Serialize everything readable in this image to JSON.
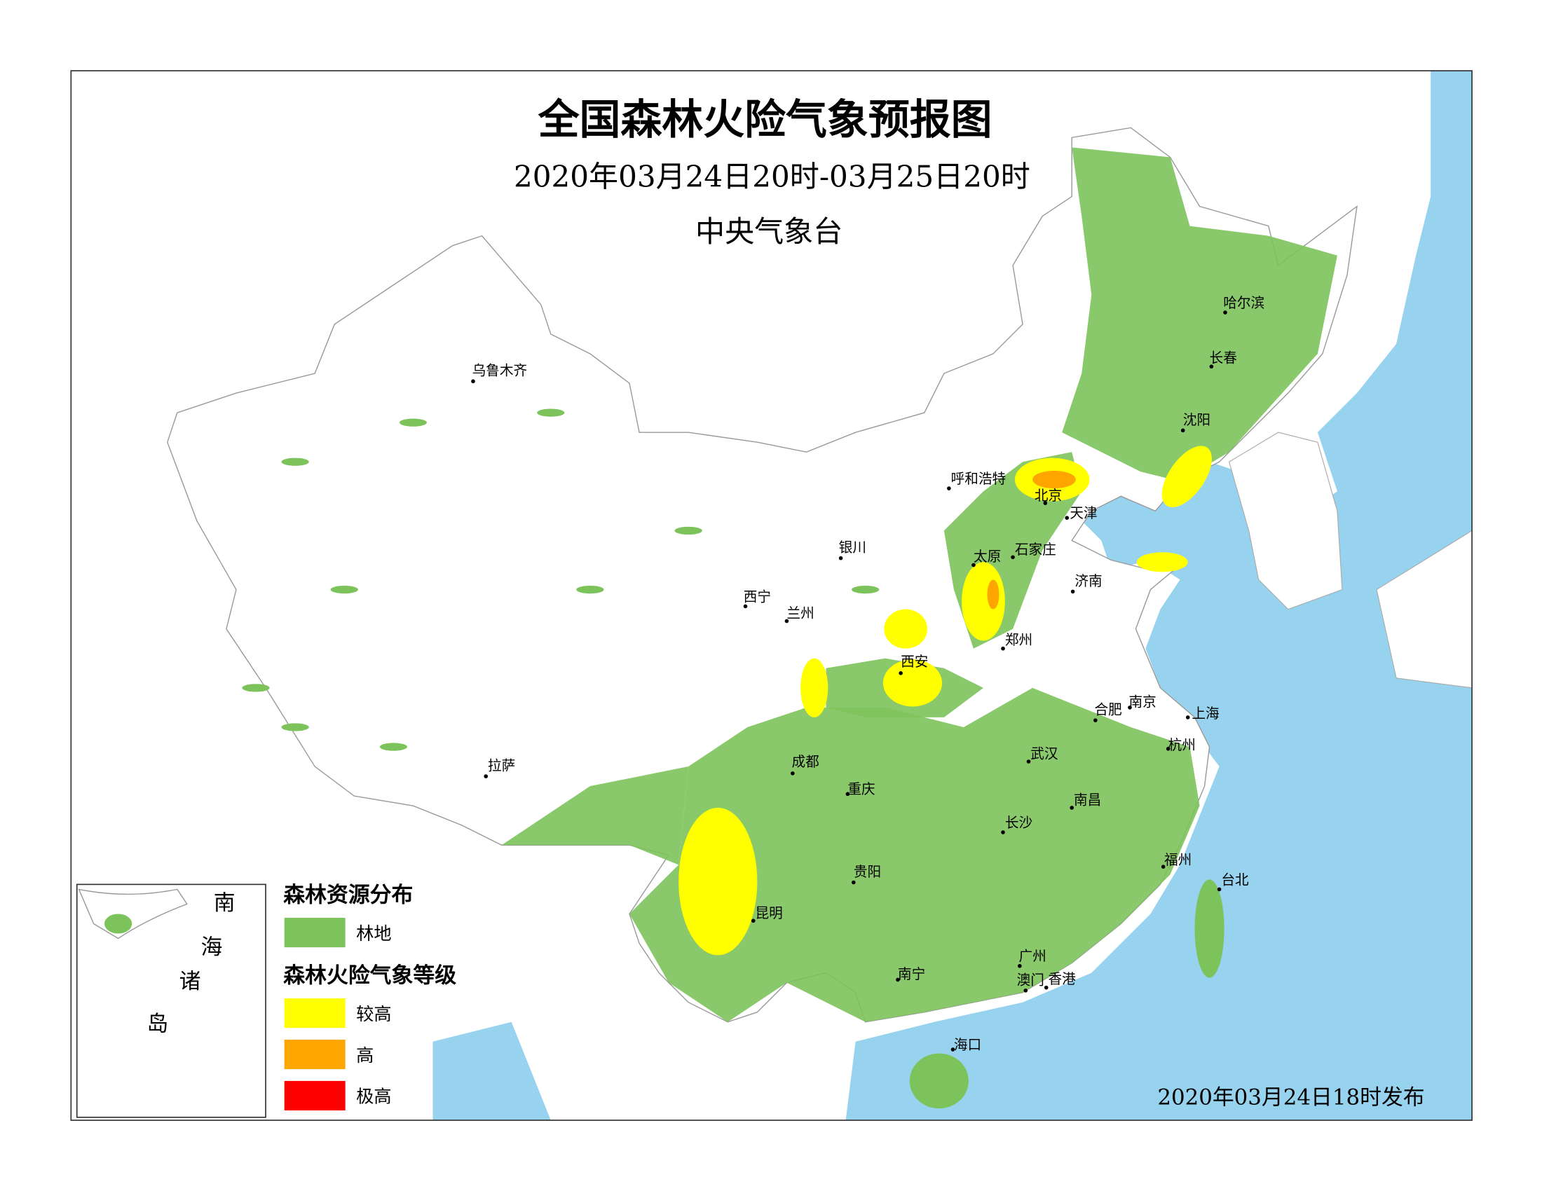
{
  "header": {
    "title": "全国森林火险气象预报图",
    "period": "2020年03月24日20时-03月25日20时",
    "issuer": "中央气象台"
  },
  "cities": [
    "乌鲁木齐",
    "呼和浩特",
    "北京",
    "天津",
    "石家庄",
    "太原",
    "银川",
    "西宁",
    "兰州",
    "西安",
    "郑州",
    "济南",
    "沈阳",
    "长春",
    "哈尔滨",
    "南京",
    "合肥",
    "上海",
    "杭州",
    "武汉",
    "拉萨",
    "成都",
    "重庆",
    "长沙",
    "南昌",
    "贵阳",
    "昆明",
    "福州",
    "台北",
    "广州",
    "澳门",
    "香港",
    "南宁",
    "海口"
  ],
  "legend": {
    "forest_title": "森林资源分布",
    "forest_items": [
      {
        "label": "林地",
        "color": "#7dc35b"
      }
    ],
    "risk_title": "森林火险气象等级",
    "risk_items": [
      {
        "label": "较高",
        "color": "#ffff00"
      },
      {
        "label": "高",
        "color": "#ffa500"
      },
      {
        "label": "极高",
        "color": "#ff0000"
      }
    ]
  },
  "inset": {
    "label": [
      "南",
      "海",
      "诸",
      "岛"
    ]
  },
  "footer": {
    "issued": "2020年03月24日18时发布"
  }
}
